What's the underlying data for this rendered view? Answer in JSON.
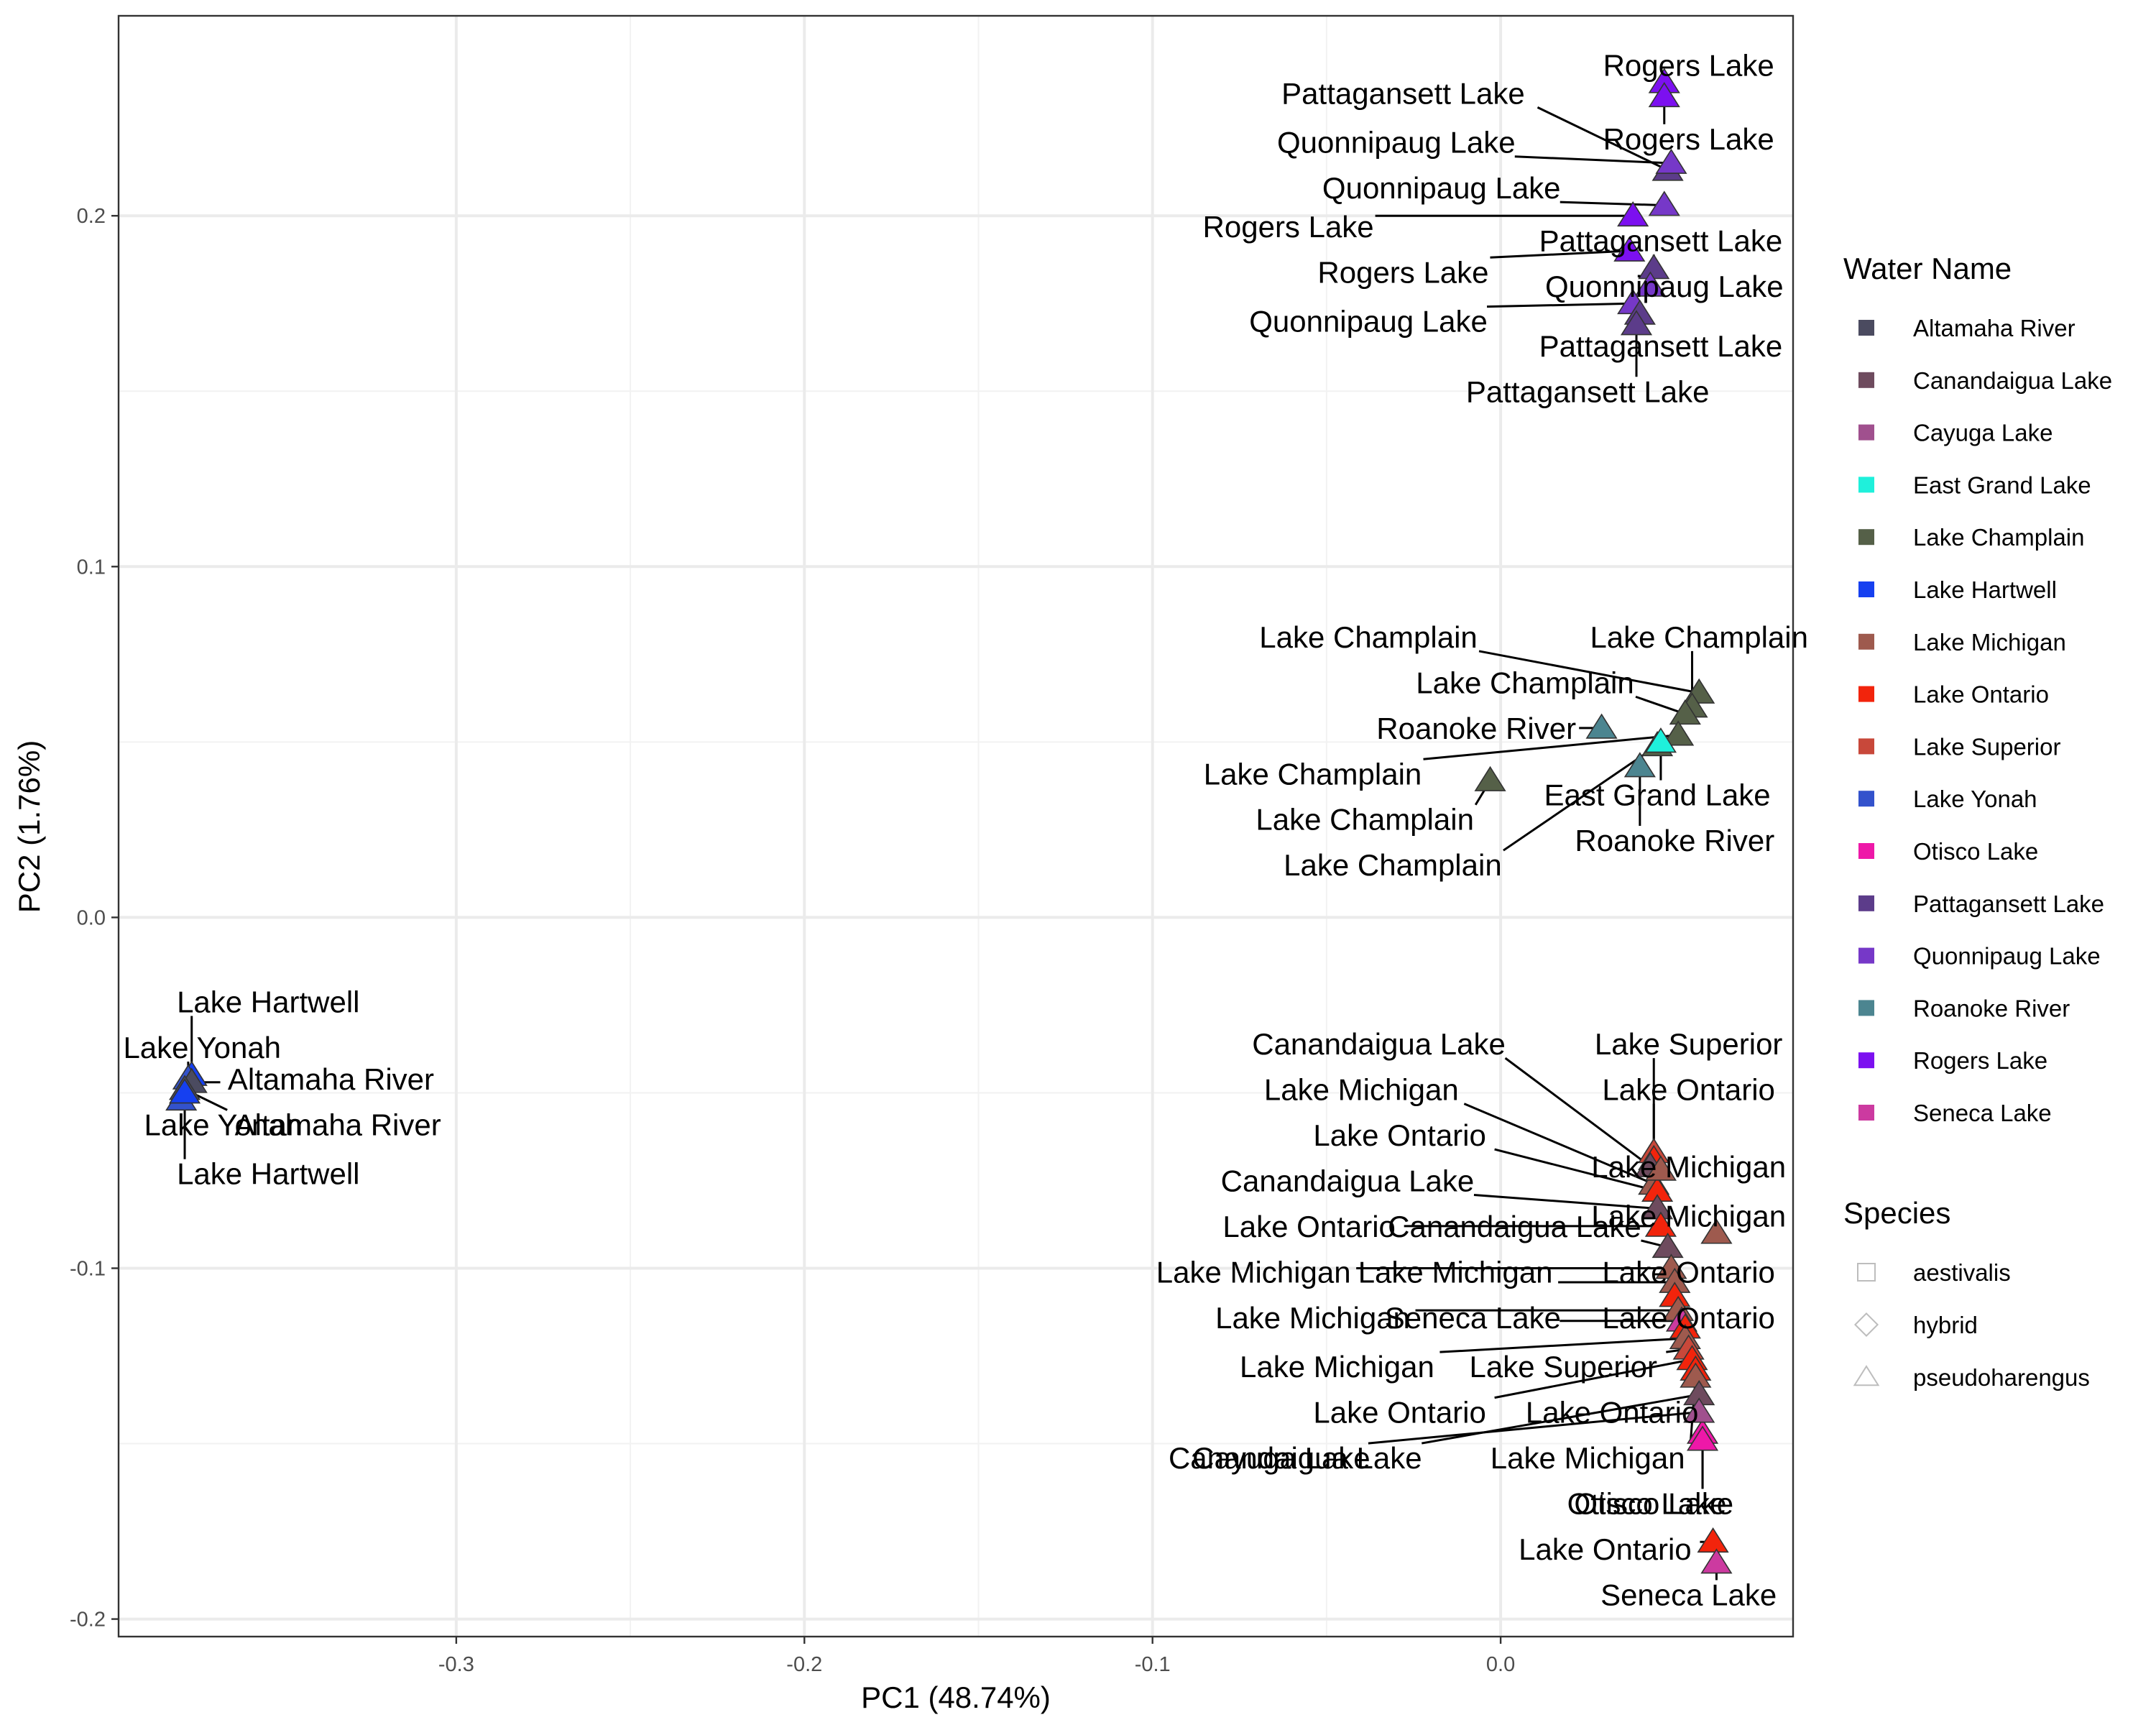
{
  "chart_data": {
    "type": "scatter",
    "xlabel": "PC1 (48.74%)",
    "ylabel": "PC2 (1.76%)",
    "xlim": [
      -0.397,
      0.084
    ],
    "ylim": [
      -0.205,
      0.257
    ],
    "x_ticks": [
      -0.3,
      -0.2,
      -0.1,
      0.0
    ],
    "x_tick_labels": [
      "-0.3",
      "-0.2",
      "-0.1",
      "0.0"
    ],
    "y_ticks": [
      -0.2,
      -0.1,
      0.0,
      0.1,
      0.2
    ],
    "y_tick_labels": [
      "-0.2",
      "-0.1",
      "0.0",
      "0.1",
      "0.2"
    ],
    "grid": true,
    "legend_position": "right",
    "color_legend": {
      "title": "Water Name",
      "items": [
        {
          "name": "Altamaha River",
          "color": "#4B4B60"
        },
        {
          "name": "Canandaigua Lake",
          "color": "#6E4B5E"
        },
        {
          "name": "Cayuga Lake",
          "color": "#A0508E"
        },
        {
          "name": "East Grand Lake",
          "color": "#1FF0DB"
        },
        {
          "name": "Lake Champlain",
          "color": "#556048"
        },
        {
          "name": "Lake Hartwell",
          "color": "#1640F0"
        },
        {
          "name": "Lake Michigan",
          "color": "#9E5A4E"
        },
        {
          "name": "Lake Ontario",
          "color": "#F2240C"
        },
        {
          "name": "Lake Superior",
          "color": "#C8483A"
        },
        {
          "name": "Lake Yonah",
          "color": "#3352CC"
        },
        {
          "name": "Otisco Lake",
          "color": "#EE18A8"
        },
        {
          "name": "Pattagansett Lake",
          "color": "#5C3C8A"
        },
        {
          "name": "Quonnipaug Lake",
          "color": "#7638C8"
        },
        {
          "name": "Roanoke River",
          "color": "#4C8590"
        },
        {
          "name": "Rogers Lake",
          "color": "#7C10F0"
        },
        {
          "name": "Seneca Lake",
          "color": "#CC3AA0"
        }
      ]
    },
    "shape_legend": {
      "title": "Species",
      "items": [
        {
          "name": "aestivalis",
          "shape": "square"
        },
        {
          "name": "hybrid",
          "shape": "diamond"
        },
        {
          "name": "pseudoharengus",
          "shape": "triangle"
        }
      ]
    },
    "points": [
      {
        "x": -0.376,
        "y": -0.045,
        "water": "Lake Hartwell",
        "species": "aestivalis",
        "label": "Lake Hartwell",
        "lx": -0.354,
        "ly": -0.024
      },
      {
        "x": -0.377,
        "y": -0.046,
        "water": "Lake Yonah",
        "species": "aestivalis",
        "label": "Lake Yonah",
        "lx": -0.373,
        "ly": -0.037
      },
      {
        "x": -0.376,
        "y": -0.047,
        "water": "Altamaha River",
        "species": "aestivalis",
        "label": "Altamaha River",
        "lx": -0.336,
        "ly": -0.046
      },
      {
        "x": -0.378,
        "y": -0.049,
        "water": "Altamaha River",
        "species": "aestivalis",
        "label": "Altamaha River",
        "lx": -0.334,
        "ly": -0.059
      },
      {
        "x": -0.379,
        "y": -0.052,
        "water": "Lake Yonah",
        "species": "aestivalis",
        "label": "Lake Yonah",
        "lx": -0.367,
        "ly": -0.059
      },
      {
        "x": -0.378,
        "y": -0.05,
        "water": "Lake Hartwell",
        "species": "aestivalis",
        "label": "Lake Hartwell",
        "lx": -0.354,
        "ly": -0.073
      },
      {
        "x": 0.047,
        "y": 0.238,
        "water": "Rogers Lake",
        "species": "pseudoharengus",
        "label": "Rogers Lake",
        "lx": 0.054,
        "ly": 0.243
      },
      {
        "x": 0.047,
        "y": 0.234,
        "water": "Rogers Lake",
        "species": "pseudoharengus",
        "label": "Rogers Lake",
        "lx": 0.054,
        "ly": 0.222
      },
      {
        "x": 0.048,
        "y": 0.213,
        "water": "Pattagansett Lake",
        "species": "pseudoharengus",
        "label": "Pattagansett Lake",
        "lx": -0.028,
        "ly": 0.235
      },
      {
        "x": 0.049,
        "y": 0.215,
        "water": "Quonnipaug Lake",
        "species": "pseudoharengus",
        "label": "Quonnipaug Lake",
        "lx": -0.03,
        "ly": 0.221
      },
      {
        "x": 0.047,
        "y": 0.203,
        "water": "Quonnipaug Lake",
        "species": "pseudoharengus",
        "label": "Quonnipaug Lake",
        "lx": -0.017,
        "ly": 0.208
      },
      {
        "x": 0.038,
        "y": 0.2,
        "water": "Rogers Lake",
        "species": "pseudoharengus",
        "label": "Rogers Lake",
        "lx": -0.061,
        "ly": 0.197
      },
      {
        "x": 0.037,
        "y": 0.19,
        "water": "Rogers Lake",
        "species": "pseudoharengus",
        "label": "Rogers Lake",
        "lx": -0.028,
        "ly": 0.184
      },
      {
        "x": 0.044,
        "y": 0.185,
        "water": "Pattagansett Lake",
        "species": "pseudoharengus",
        "label": "Pattagansett Lake",
        "lx": 0.046,
        "ly": 0.193
      },
      {
        "x": 0.043,
        "y": 0.18,
        "water": "Quonnipaug Lake",
        "species": "pseudoharengus",
        "label": "Quonnipaug Lake",
        "lx": 0.047,
        "ly": 0.18
      },
      {
        "x": 0.038,
        "y": 0.175,
        "water": "Quonnipaug Lake",
        "species": "pseudoharengus",
        "label": "Quonnipaug Lake",
        "lx": -0.038,
        "ly": 0.17
      },
      {
        "x": 0.04,
        "y": 0.172,
        "water": "Pattagansett Lake",
        "species": "pseudoharengus",
        "label": "Pattagansett Lake",
        "lx": 0.046,
        "ly": 0.163
      },
      {
        "x": 0.039,
        "y": 0.169,
        "water": "Pattagansett Lake",
        "species": "pseudoharengus",
        "label": "Pattagansett Lake",
        "lx": 0.025,
        "ly": 0.15
      },
      {
        "x": 0.057,
        "y": 0.064,
        "water": "Lake Champlain",
        "species": "pseudoharengus",
        "label": "Lake Champlain",
        "lx": -0.038,
        "ly": 0.08
      },
      {
        "x": 0.055,
        "y": 0.06,
        "water": "Lake Champlain",
        "species": "pseudoharengus",
        "label": "Lake Champlain",
        "lx": 0.057,
        "ly": 0.08
      },
      {
        "x": 0.053,
        "y": 0.058,
        "water": "Lake Champlain",
        "species": "pseudoharengus",
        "label": "Lake Champlain",
        "lx": 0.007,
        "ly": 0.067
      },
      {
        "x": 0.051,
        "y": 0.052,
        "water": "Lake Champlain",
        "species": "pseudoharengus",
        "label": "Lake Champlain",
        "lx": -0.054,
        "ly": 0.041
      },
      {
        "x": -0.003,
        "y": 0.039,
        "water": "Lake Champlain",
        "species": "pseudoharengus",
        "label": "Lake Champlain",
        "lx": -0.039,
        "ly": 0.028
      },
      {
        "x": 0.045,
        "y": 0.049,
        "water": "Lake Champlain",
        "species": "pseudoharengus",
        "label": "Lake Champlain",
        "lx": -0.031,
        "ly": 0.015
      },
      {
        "x": 0.029,
        "y": 0.054,
        "water": "Roanoke River",
        "species": "hybrid",
        "label": "Roanoke River",
        "lx": -0.007,
        "ly": 0.054
      },
      {
        "x": 0.04,
        "y": 0.043,
        "water": "Roanoke River",
        "species": "hybrid",
        "label": "Roanoke River",
        "lx": 0.05,
        "ly": 0.022
      },
      {
        "x": 0.046,
        "y": 0.05,
        "water": "East Grand Lake",
        "species": "hybrid",
        "label": "East Grand Lake",
        "lx": 0.045,
        "ly": 0.035
      },
      {
        "x": 0.044,
        "y": -0.067,
        "water": "Lake Superior",
        "species": "pseudoharengus",
        "label": "Lake Superior",
        "lx": 0.054,
        "ly": -0.036
      },
      {
        "x": 0.044,
        "y": -0.069,
        "water": "Lake Ontario",
        "species": "pseudoharengus",
        "label": "Lake Ontario",
        "lx": 0.054,
        "ly": -0.049
      },
      {
        "x": 0.043,
        "y": -0.071,
        "water": "Canandaigua Lake",
        "species": "pseudoharengus",
        "label": "Canandaigua Lake",
        "lx": -0.035,
        "ly": -0.036
      },
      {
        "x": 0.044,
        "y": -0.076,
        "water": "Lake Michigan",
        "species": "pseudoharengus",
        "label": "Lake Michigan",
        "lx": -0.04,
        "ly": -0.049
      },
      {
        "x": 0.045,
        "y": -0.078,
        "water": "Lake Ontario",
        "species": "pseudoharengus",
        "label": "Lake Ontario",
        "lx": -0.029,
        "ly": -0.062
      },
      {
        "x": 0.046,
        "y": -0.072,
        "water": "Lake Michigan",
        "species": "pseudoharengus",
        "label": "Lake Michigan",
        "lx": 0.054,
        "ly": -0.071
      },
      {
        "x": 0.045,
        "y": -0.083,
        "water": "Canandaigua Lake",
        "species": "pseudoharengus",
        "label": "Canandaigua Lake",
        "lx": -0.044,
        "ly": -0.075
      },
      {
        "x": 0.062,
        "y": -0.09,
        "water": "Lake Michigan",
        "species": "pseudoharengus",
        "label": "Lake Michigan",
        "lx": 0.054,
        "ly": -0.085
      },
      {
        "x": 0.046,
        "y": -0.088,
        "water": "Lake Ontario",
        "species": "pseudoharengus",
        "label": "Lake Ontario",
        "lx": -0.055,
        "ly": -0.088
      },
      {
        "x": 0.048,
        "y": -0.094,
        "water": "Canandaigua Lake",
        "species": "pseudoharengus",
        "label": "Canandaigua Lake",
        "lx": 0.004,
        "ly": -0.088
      },
      {
        "x": 0.049,
        "y": -0.1,
        "water": "Lake Michigan",
        "species": "pseudoharengus",
        "label": "Lake Michigan",
        "lx": -0.071,
        "ly": -0.101
      },
      {
        "x": 0.05,
        "y": -0.104,
        "water": "Lake Michigan",
        "species": "pseudoharengus",
        "label": "Lake Michigan",
        "lx": -0.013,
        "ly": -0.101
      },
      {
        "x": 0.05,
        "y": -0.108,
        "water": "Lake Ontario",
        "species": "pseudoharengus",
        "label": "Lake Ontario",
        "lx": 0.054,
        "ly": -0.101
      },
      {
        "x": 0.051,
        "y": -0.112,
        "water": "Lake Michigan",
        "species": "pseudoharengus",
        "label": "Lake Michigan",
        "lx": -0.054,
        "ly": -0.114
      },
      {
        "x": 0.052,
        "y": -0.115,
        "water": "Seneca Lake",
        "species": "pseudoharengus",
        "label": "Seneca Lake",
        "lx": -0.008,
        "ly": -0.114
      },
      {
        "x": 0.053,
        "y": -0.117,
        "water": "Lake Ontario",
        "species": "pseudoharengus",
        "label": "Lake Ontario",
        "lx": 0.054,
        "ly": -0.114
      },
      {
        "x": 0.053,
        "y": -0.12,
        "water": "Lake Michigan",
        "species": "pseudoharengus",
        "label": "Lake Michigan",
        "lx": -0.047,
        "ly": -0.128
      },
      {
        "x": 0.054,
        "y": -0.123,
        "water": "Lake Superior",
        "species": "pseudoharengus",
        "label": "Lake Superior",
        "lx": 0.018,
        "ly": -0.128
      },
      {
        "x": 0.055,
        "y": -0.126,
        "water": "Lake Ontario",
        "species": "pseudoharengus",
        "label": "Lake Ontario",
        "lx": -0.029,
        "ly": -0.141
      },
      {
        "x": 0.056,
        "y": -0.129,
        "water": "Lake Ontario",
        "species": "pseudoharengus",
        "label": "Lake Ontario",
        "lx": 0.032,
        "ly": -0.141
      },
      {
        "x": 0.056,
        "y": -0.131,
        "water": "Lake Michigan",
        "species": "pseudoharengus",
        "label": "Lake Michigan",
        "lx": 0.025,
        "ly": -0.154
      },
      {
        "x": 0.057,
        "y": -0.136,
        "water": "Canandaigua Lake",
        "species": "pseudoharengus",
        "label": "Canandaigua Lake",
        "lx": -0.059,
        "ly": -0.154
      },
      {
        "x": 0.058,
        "y": -0.147,
        "water": "Otisco Lake",
        "species": "pseudoharengus",
        "label": "Otisco Lake",
        "lx": 0.044,
        "ly": -0.167
      },
      {
        "x": 0.057,
        "y": -0.141,
        "water": "Cayuga Lake",
        "species": "pseudoharengus",
        "label": "Cayuga Lake",
        "lx": -0.063,
        "ly": -0.154
      },
      {
        "x": 0.058,
        "y": -0.149,
        "water": "Otisco Lake",
        "species": "pseudoharengus",
        "label": "Otisco Lake",
        "lx": 0.042,
        "ly": -0.167
      },
      {
        "x": 0.061,
        "y": -0.178,
        "water": "Lake Ontario",
        "species": "pseudoharengus",
        "label": "Lake Ontario",
        "lx": 0.03,
        "ly": -0.18
      },
      {
        "x": 0.062,
        "y": -0.184,
        "water": "Seneca Lake",
        "species": "pseudoharengus",
        "label": "Seneca Lake",
        "lx": 0.054,
        "ly": -0.193
      }
    ]
  }
}
